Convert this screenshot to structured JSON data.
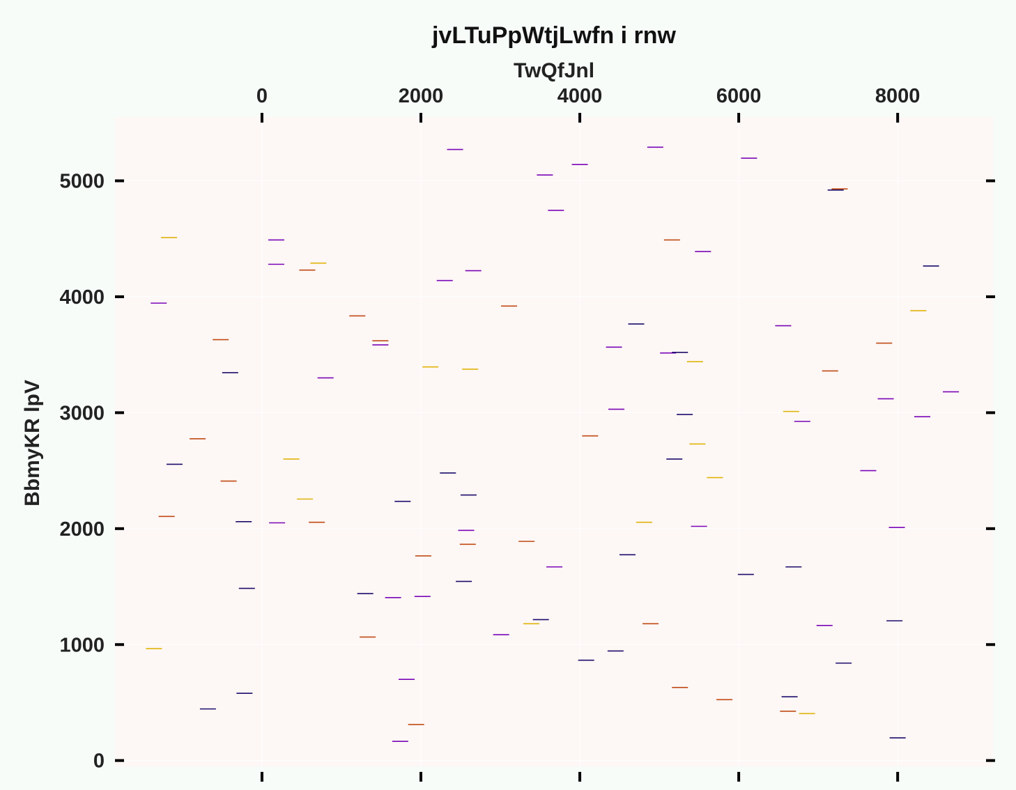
{
  "chart_data": {
    "type": "scatter",
    "marker": "horizontal-line",
    "title": "jvLTuPpWtjLwfn i rnw",
    "xlabel": "TwQfJnl",
    "ylabel": "BbmyKR lpV",
    "xlim": [
      -1850,
      9200
    ],
    "ylim": [
      -50,
      5550
    ],
    "xticks": [
      0,
      2000,
      4000,
      6000,
      8000
    ],
    "yticks": [
      0,
      1000,
      2000,
      3000,
      4000,
      5000
    ],
    "x_axis_position": "top",
    "grid": true,
    "colors": {
      "page_background": "#f7fcf8",
      "plot_background": "#fdf7f5",
      "grid": "#ffffff",
      "palette": [
        "#1d0c6b",
        "#7a06b8",
        "#c04a14",
        "#e0b40a"
      ]
    },
    "points": [
      {
        "x": 2430,
        "y": 5270,
        "c": 1
      },
      {
        "x": 4950,
        "y": 5290,
        "c": 1
      },
      {
        "x": 6130,
        "y": 5195,
        "c": 1
      },
      {
        "x": 3560,
        "y": 5050,
        "c": 1
      },
      {
        "x": 4000,
        "y": 5140,
        "c": 1
      },
      {
        "x": 7220,
        "y": 4920,
        "c": 0
      },
      {
        "x": 7270,
        "y": 4930,
        "c": 2
      },
      {
        "x": 3700,
        "y": 4745,
        "c": 1
      },
      {
        "x": -1170,
        "y": 4510,
        "c": 3
      },
      {
        "x": 180,
        "y": 4490,
        "c": 1
      },
      {
        "x": 5160,
        "y": 4490,
        "c": 2
      },
      {
        "x": 5550,
        "y": 4390,
        "c": 1
      },
      {
        "x": 180,
        "y": 4280,
        "c": 1
      },
      {
        "x": 710,
        "y": 4290,
        "c": 3
      },
      {
        "x": 570,
        "y": 4230,
        "c": 2
      },
      {
        "x": 2660,
        "y": 4225,
        "c": 1
      },
      {
        "x": 2300,
        "y": 4140,
        "c": 1
      },
      {
        "x": 8420,
        "y": 4265,
        "c": 0
      },
      {
        "x": -1300,
        "y": 3945,
        "c": 1
      },
      {
        "x": 1200,
        "y": 3835,
        "c": 2
      },
      {
        "x": 3110,
        "y": 3920,
        "c": 2
      },
      {
        "x": 8260,
        "y": 3880,
        "c": 3
      },
      {
        "x": 4710,
        "y": 3765,
        "c": 0
      },
      {
        "x": 6560,
        "y": 3750,
        "c": 1
      },
      {
        "x": -520,
        "y": 3630,
        "c": 2
      },
      {
        "x": 1490,
        "y": 3620,
        "c": 2
      },
      {
        "x": 1490,
        "y": 3585,
        "c": 1
      },
      {
        "x": 4430,
        "y": 3565,
        "c": 1
      },
      {
        "x": 7830,
        "y": 3600,
        "c": 2
      },
      {
        "x": 5110,
        "y": 3515,
        "c": 1
      },
      {
        "x": 5260,
        "y": 3520,
        "c": 0
      },
      {
        "x": 5450,
        "y": 3440,
        "c": 3
      },
      {
        "x": 2120,
        "y": 3395,
        "c": 3
      },
      {
        "x": 2620,
        "y": 3375,
        "c": 3
      },
      {
        "x": -400,
        "y": 3345,
        "c": 0
      },
      {
        "x": 7150,
        "y": 3360,
        "c": 2
      },
      {
        "x": 800,
        "y": 3300,
        "c": 1
      },
      {
        "x": 8670,
        "y": 3180,
        "c": 1
      },
      {
        "x": 7850,
        "y": 3120,
        "c": 1
      },
      {
        "x": 4460,
        "y": 3030,
        "c": 1
      },
      {
        "x": 6660,
        "y": 3010,
        "c": 3
      },
      {
        "x": 5320,
        "y": 2985,
        "c": 0
      },
      {
        "x": 8310,
        "y": 2965,
        "c": 1
      },
      {
        "x": 6800,
        "y": 2925,
        "c": 1
      },
      {
        "x": 4130,
        "y": 2800,
        "c": 2
      },
      {
        "x": -810,
        "y": 2775,
        "c": 2
      },
      {
        "x": 5480,
        "y": 2730,
        "c": 3
      },
      {
        "x": 370,
        "y": 2600,
        "c": 3
      },
      {
        "x": 5190,
        "y": 2600,
        "c": 0
      },
      {
        "x": -1100,
        "y": 2555,
        "c": 0
      },
      {
        "x": 7630,
        "y": 2500,
        "c": 1
      },
      {
        "x": 2340,
        "y": 2480,
        "c": 0
      },
      {
        "x": 5700,
        "y": 2440,
        "c": 3
      },
      {
        "x": -420,
        "y": 2410,
        "c": 2
      },
      {
        "x": 2600,
        "y": 2290,
        "c": 0
      },
      {
        "x": 540,
        "y": 2255,
        "c": 3
      },
      {
        "x": 1770,
        "y": 2235,
        "c": 0
      },
      {
        "x": -1200,
        "y": 2105,
        "c": 2
      },
      {
        "x": -230,
        "y": 2060,
        "c": 0
      },
      {
        "x": 190,
        "y": 2050,
        "c": 1
      },
      {
        "x": 690,
        "y": 2055,
        "c": 2
      },
      {
        "x": 4810,
        "y": 2055,
        "c": 3
      },
      {
        "x": 5500,
        "y": 2020,
        "c": 1
      },
      {
        "x": 7990,
        "y": 2010,
        "c": 1
      },
      {
        "x": 2570,
        "y": 1985,
        "c": 1
      },
      {
        "x": 3330,
        "y": 1890,
        "c": 2
      },
      {
        "x": 2590,
        "y": 1865,
        "c": 2
      },
      {
        "x": 4600,
        "y": 1775,
        "c": 0
      },
      {
        "x": 2030,
        "y": 1765,
        "c": 2
      },
      {
        "x": 3680,
        "y": 1670,
        "c": 1
      },
      {
        "x": 6690,
        "y": 1670,
        "c": 0
      },
      {
        "x": 6090,
        "y": 1605,
        "c": 0
      },
      {
        "x": 2540,
        "y": 1545,
        "c": 0
      },
      {
        "x": -190,
        "y": 1485,
        "c": 0
      },
      {
        "x": 1300,
        "y": 1440,
        "c": 0
      },
      {
        "x": 1650,
        "y": 1405,
        "c": 1
      },
      {
        "x": 2020,
        "y": 1415,
        "c": 1
      },
      {
        "x": 3510,
        "y": 1215,
        "c": 0
      },
      {
        "x": 3390,
        "y": 1180,
        "c": 3
      },
      {
        "x": 7960,
        "y": 1205,
        "c": 0
      },
      {
        "x": 4890,
        "y": 1180,
        "c": 2
      },
      {
        "x": 7080,
        "y": 1165,
        "c": 1
      },
      {
        "x": 3010,
        "y": 1085,
        "c": 1
      },
      {
        "x": 1330,
        "y": 1065,
        "c": 2
      },
      {
        "x": -1360,
        "y": 965,
        "c": 3
      },
      {
        "x": 4450,
        "y": 945,
        "c": 0
      },
      {
        "x": 4080,
        "y": 865,
        "c": 0
      },
      {
        "x": 7320,
        "y": 840,
        "c": 0
      },
      {
        "x": 1820,
        "y": 700,
        "c": 1
      },
      {
        "x": 5260,
        "y": 630,
        "c": 2
      },
      {
        "x": -220,
        "y": 580,
        "c": 0
      },
      {
        "x": 6640,
        "y": 550,
        "c": 0
      },
      {
        "x": 5820,
        "y": 525,
        "c": 2
      },
      {
        "x": -680,
        "y": 445,
        "c": 0
      },
      {
        "x": 6620,
        "y": 425,
        "c": 2
      },
      {
        "x": 6860,
        "y": 405,
        "c": 3
      },
      {
        "x": 1940,
        "y": 310,
        "c": 2
      },
      {
        "x": 8000,
        "y": 195,
        "c": 0
      },
      {
        "x": 1740,
        "y": 165,
        "c": 1
      }
    ]
  }
}
